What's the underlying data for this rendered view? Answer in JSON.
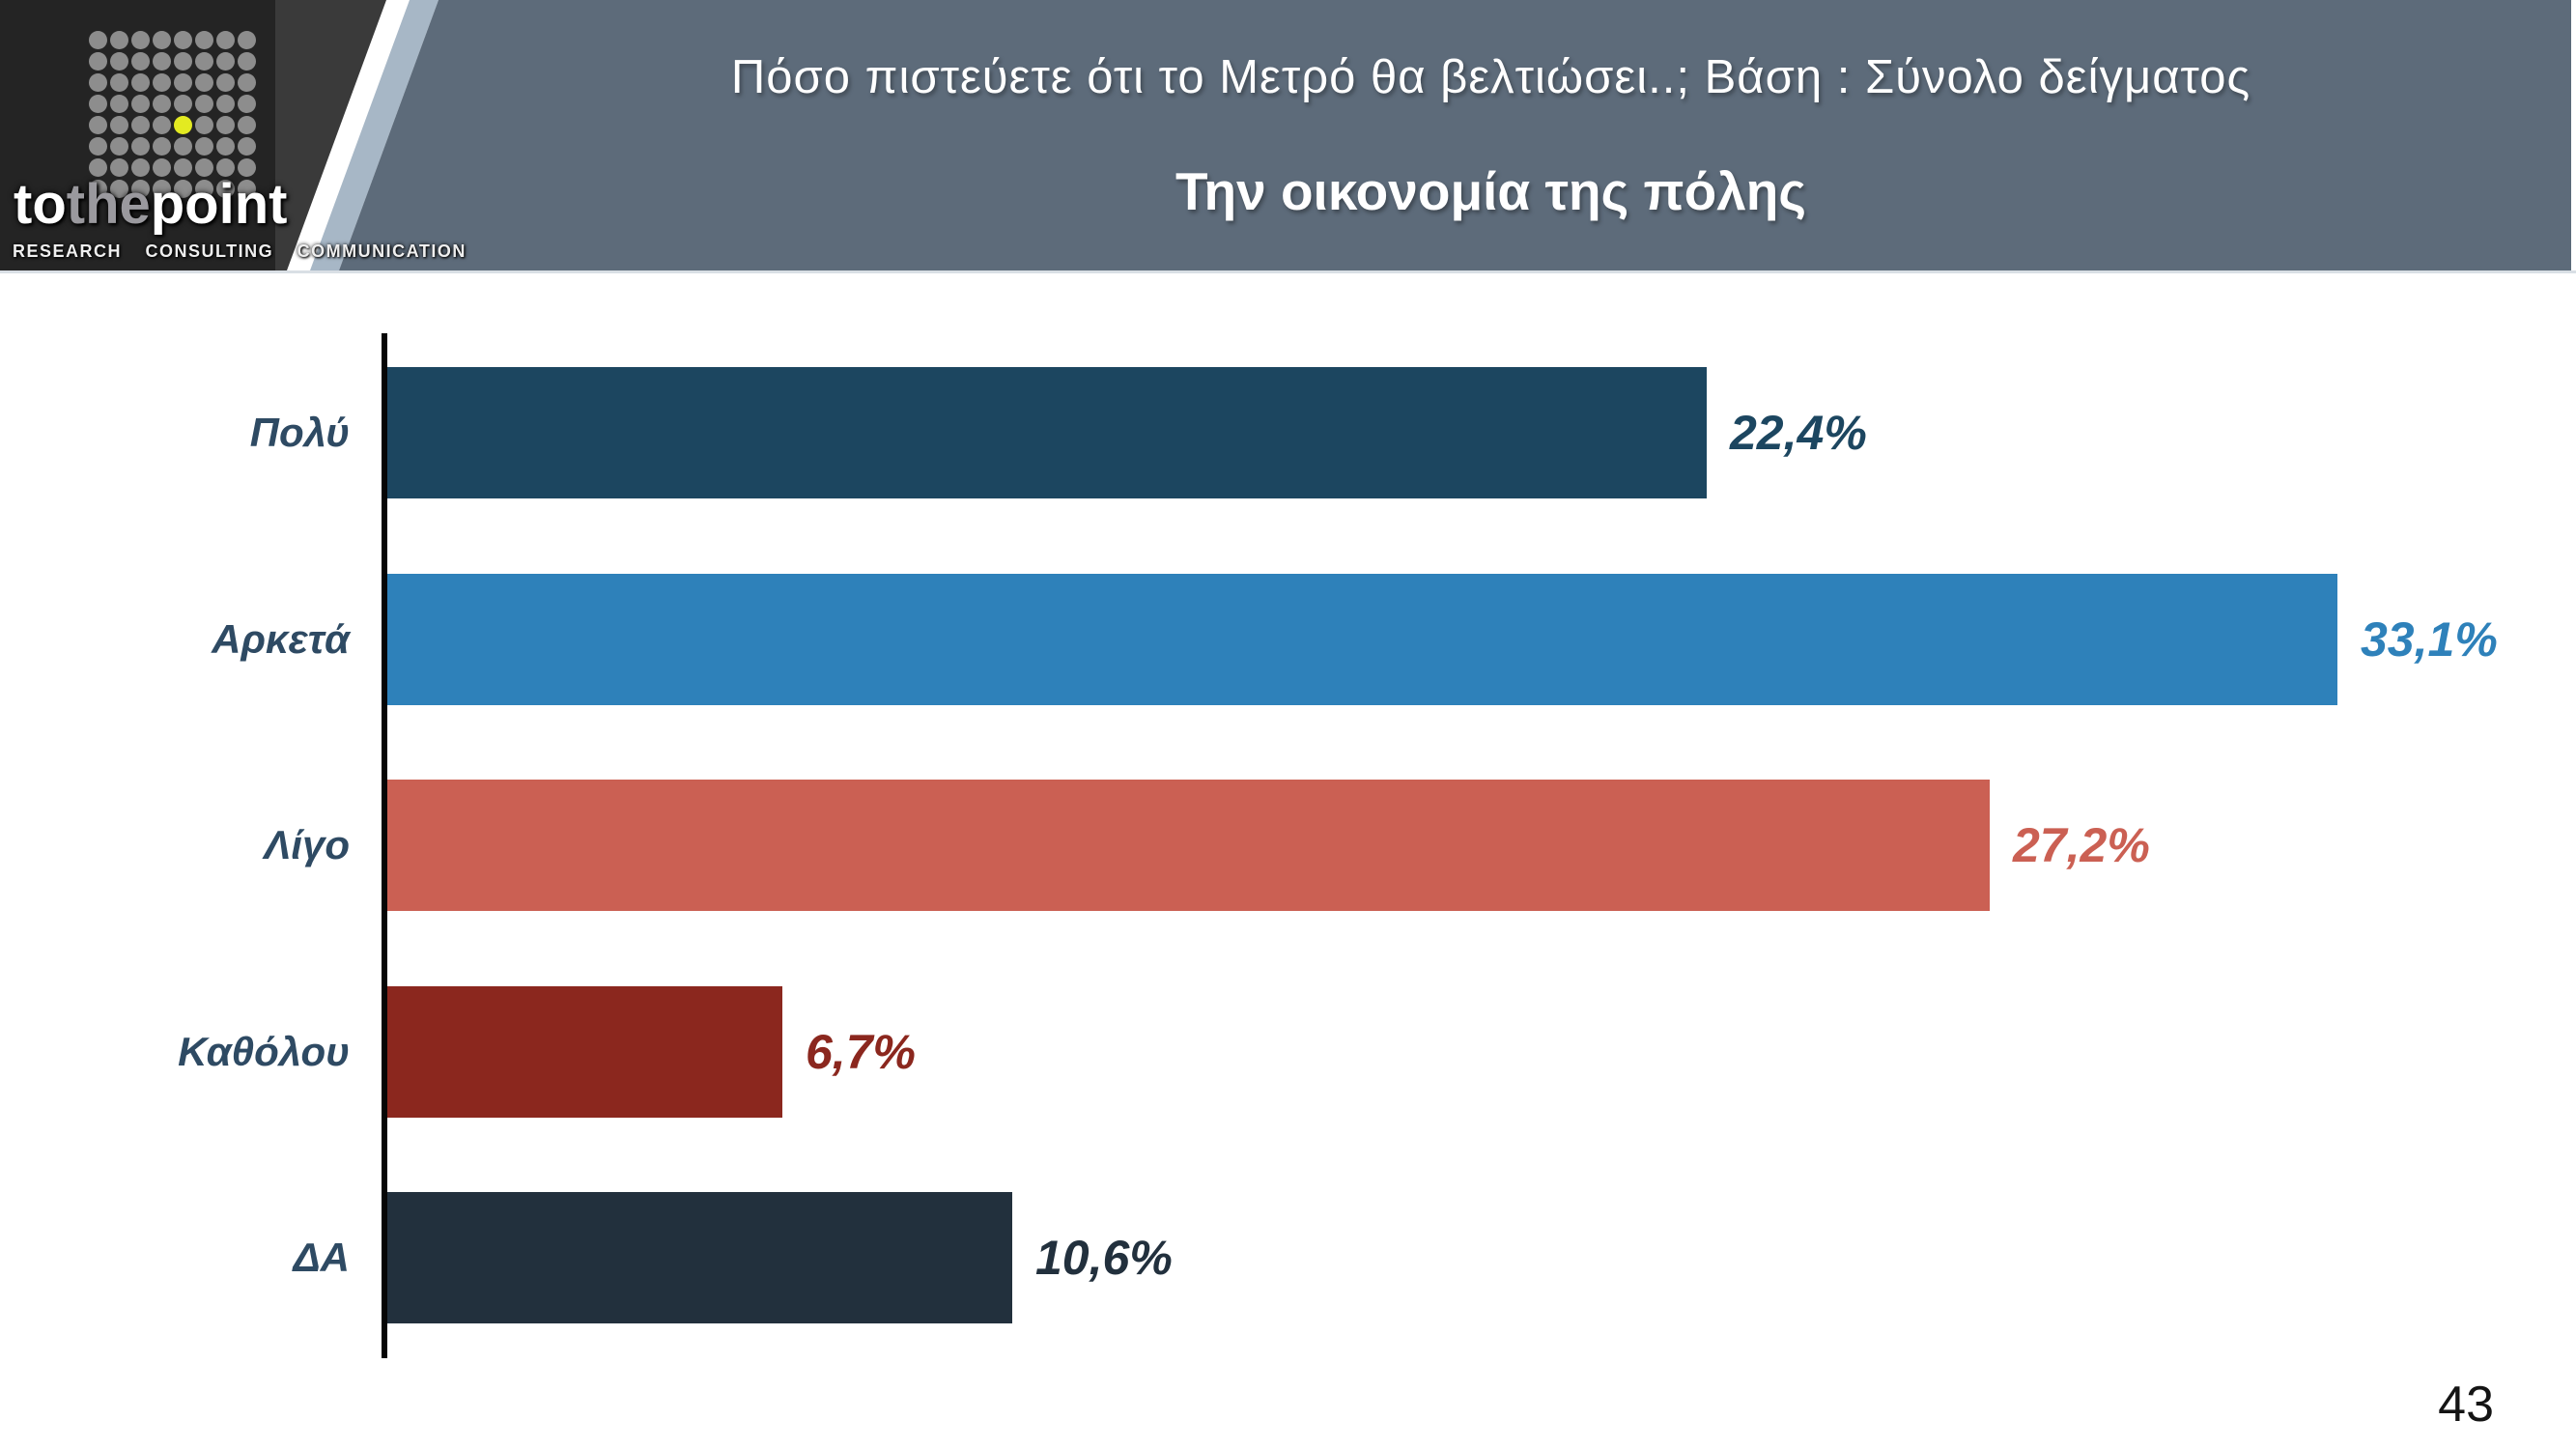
{
  "header": {
    "logo": {
      "brand": {
        "part1": "to",
        "part2": "the",
        "part3": "point"
      },
      "tagline": "RESEARCH CONSULTING COMMUNICATION",
      "grid": {
        "rows": 8,
        "cols": 8,
        "accent_index": 36,
        "dot_color": "#8d8d8d",
        "accent_color": "#e3ea21"
      }
    },
    "title_line1": "Πόσο πιστεύετε ότι το Μετρό θα βελτιώσει..; Βάση : Σύνολο δείγματος",
    "title_line2": "Την οικονομία της πόλης",
    "colors": {
      "logo_bg": "#242424",
      "wedge": "#3a3a3a",
      "stripe_light": "#a7b7c6",
      "band": "#5d6b7a"
    }
  },
  "chart_data": {
    "type": "bar",
    "orientation": "horizontal",
    "title": "Την οικονομία της πόλης",
    "categories": [
      "Πολύ",
      "Αρκετά",
      "Λίγο",
      "Καθόλου",
      "ΔΑ"
    ],
    "values": [
      22.4,
      33.1,
      27.2,
      6.7,
      10.6
    ],
    "value_labels": [
      "22,4%",
      "33,1%",
      "27,2%",
      "6,7%",
      "10,6%"
    ],
    "bar_colors": [
      "#1c4660",
      "#2e81ba",
      "#cb6053",
      "#8b271e",
      "#22303d"
    ],
    "category_label_color": "#2e4a63",
    "xlim": [
      0,
      35
    ],
    "grid": false,
    "legend": false
  },
  "page_number": "43"
}
